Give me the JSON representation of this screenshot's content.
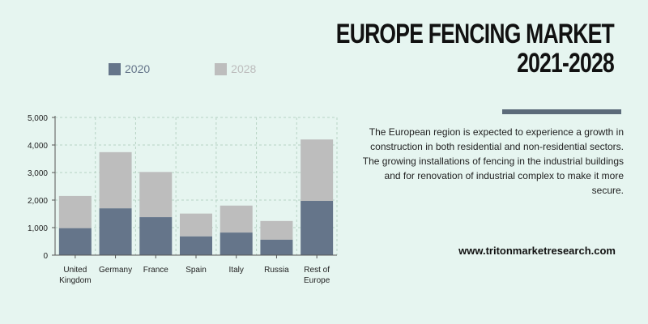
{
  "header": {
    "title_line1": "EUROPE FENCING MARKET",
    "title_line2": "2021-2028"
  },
  "colors": {
    "background": "#e6f5f0",
    "series_2020": "#65758a",
    "series_2028": "#bdbdbd",
    "rule": "#5c6b7a",
    "grid": "#b7d3c4",
    "axis": "#555555"
  },
  "description": "The European region is expected to experience a growth in construction in both residential and non-residential sectors. The growing installations of fencing in the industrial buildings and for renovation of industrial complex to make it more secure.",
  "website": "www.tritonmarketresearch.com",
  "chart_data": {
    "type": "bar",
    "stacked": true,
    "categories": [
      [
        "United",
        "Kingdom"
      ],
      [
        "Germany"
      ],
      [
        "France"
      ],
      [
        "Spain"
      ],
      [
        "Italy"
      ],
      [
        "Russia"
      ],
      [
        "Rest of",
        "Europe"
      ]
    ],
    "series": [
      {
        "name": "2020",
        "values": [
          980,
          1700,
          1380,
          680,
          820,
          560,
          1970
        ]
      },
      {
        "name": "2028",
        "values": [
          1170,
          2040,
          1640,
          830,
          980,
          680,
          2230
        ]
      }
    ],
    "ylim": [
      0,
      5000
    ],
    "yticks": [
      0,
      1000,
      2000,
      3000,
      4000,
      5000
    ],
    "ytick_labels": [
      "0",
      "1,000",
      "2,000",
      "3,000",
      "4,000",
      "5,000"
    ],
    "grid": true,
    "legend_placement": "top-left"
  }
}
